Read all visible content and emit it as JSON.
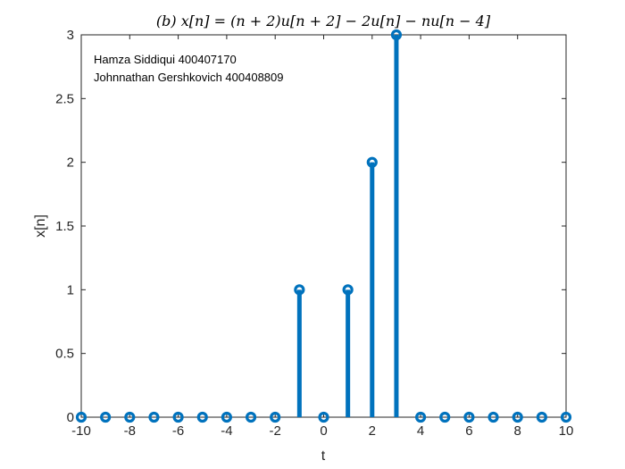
{
  "chart_data": {
    "type": "stem",
    "title": "(b)    x[n] = (n + 2)u[n + 2] − 2u[n] − nu[n − 4]",
    "xlabel": "t",
    "ylabel": "x[n]",
    "xlim": [
      -10,
      10
    ],
    "ylim": [
      0,
      3
    ],
    "xticks": [
      -10,
      -8,
      -6,
      -4,
      -2,
      0,
      2,
      4,
      6,
      8,
      10
    ],
    "yticks": [
      0,
      0.5,
      1,
      1.5,
      2,
      2.5,
      3
    ],
    "xtick_labels": [
      "-10",
      "-8",
      "-6",
      "-4",
      "-2",
      "0",
      "2",
      "4",
      "6",
      "8",
      "10"
    ],
    "ytick_labels": [
      "0",
      "0.5",
      "1",
      "1.5",
      "2",
      "2.5",
      "3"
    ],
    "x": [
      -10,
      -9,
      -8,
      -7,
      -6,
      -5,
      -4,
      -3,
      -2,
      -1,
      0,
      1,
      2,
      3,
      4,
      5,
      6,
      7,
      8,
      9,
      10
    ],
    "values": [
      0,
      0,
      0,
      0,
      0,
      0,
      0,
      0,
      0,
      1,
      0,
      1,
      2,
      3,
      0,
      0,
      0,
      0,
      0,
      0,
      0
    ],
    "grid": false,
    "color": "#0072BD",
    "annotations": [
      "Hamza Siddiqui 400407170",
      "Johnnathan Gershkovich 400408809"
    ]
  }
}
